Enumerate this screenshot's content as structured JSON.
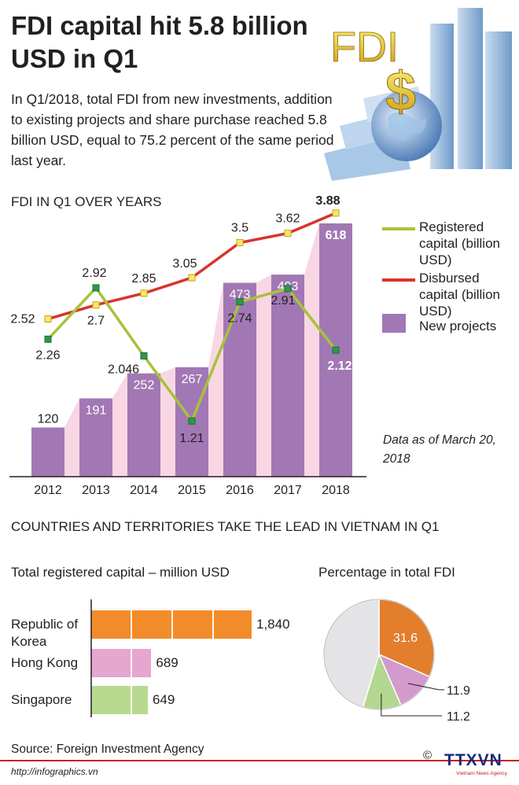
{
  "title": "FDI capital hit 5.8 billion USD in Q1",
  "intro": "In Q1/2018, total FDI from new investments, addition to existing projects and share purchase reached 5.8 billion USD, equal to 75.2 percent of the same period last year.",
  "hero": {
    "label": "FDI",
    "symbol": "$"
  },
  "section1_title": "FDI IN Q1 OVER YEARS",
  "section2_title": "COUNTRIES AND TERRITORIES TAKE THE LEAD IN VIETNAM IN Q1",
  "note": "Data as of March 20, 2018",
  "legend": {
    "registered": "Registered capital (billion USD)",
    "disbursed": "Disbursed capital (billion USD)",
    "projects": "New projects"
  },
  "colors": {
    "registered": "#a6c33a",
    "disbursed": "#d8342b",
    "projects": "#a278b4",
    "projects_shade": "#f9d6e3",
    "korea": "#f28c2a",
    "hongkong": "#e5a6cf",
    "singapore": "#b7d98f",
    "pie_korea": "#e27e2c",
    "pie_hk": "#d39acd",
    "pie_sg": "#b3d691",
    "pie_other": "#e4e4e6"
  },
  "chart_data": [
    {
      "type": "bar",
      "categories": [
        "2012",
        "2013",
        "2014",
        "2015",
        "2016",
        "2017",
        "2018"
      ],
      "series": [
        {
          "name": "New projects",
          "type": "bar",
          "values": [
            120,
            191,
            252,
            267,
            473,
            493,
            618
          ]
        },
        {
          "name": "Registered capital (billion USD)",
          "type": "line",
          "values": [
            2.26,
            2.92,
            2.046,
            1.21,
            2.74,
            2.91,
            2.12
          ]
        },
        {
          "name": "Disbursed capital (billion USD)",
          "type": "line",
          "values": [
            2.52,
            2.7,
            2.85,
            3.05,
            3.5,
            3.62,
            3.88
          ]
        }
      ],
      "value_labels": {
        "projects": [
          "120",
          "191",
          "252",
          "267",
          "473",
          "493",
          "618"
        ],
        "registered": [
          "2.26",
          "2.92",
          "2.046",
          "1.21",
          "2.74",
          "2.91",
          "2.12"
        ],
        "disbursed": [
          "2.52",
          "2.7",
          "2.85",
          "3.05",
          "3.5",
          "3.62",
          "3.88"
        ]
      },
      "title": "FDI IN Q1 OVER YEARS"
    },
    {
      "type": "bar",
      "orientation": "horizontal",
      "title": "Total registered capital – million USD",
      "categories": [
        "Republic of Korea",
        "Hong Kong",
        "Singapore"
      ],
      "values": [
        1840,
        689,
        649
      ],
      "value_labels": [
        "1,840",
        "689",
        "649"
      ]
    },
    {
      "type": "pie",
      "title": "Percentage in total FDI",
      "slices": [
        {
          "name": "Republic of Korea",
          "value": 31.6,
          "label": "31.6"
        },
        {
          "name": "Hong Kong",
          "value": 11.9,
          "label": "11.9"
        },
        {
          "name": "Singapore",
          "value": 11.2,
          "label": "11.2"
        },
        {
          "name": "",
          "value": 45.3
        }
      ]
    }
  ],
  "source": "Source: Foreign Investment Agency",
  "footer_url": "http://infographics.vn",
  "copyright": "©",
  "logo": "TTXVN",
  "logo_sub": "Vietnam News Agency"
}
